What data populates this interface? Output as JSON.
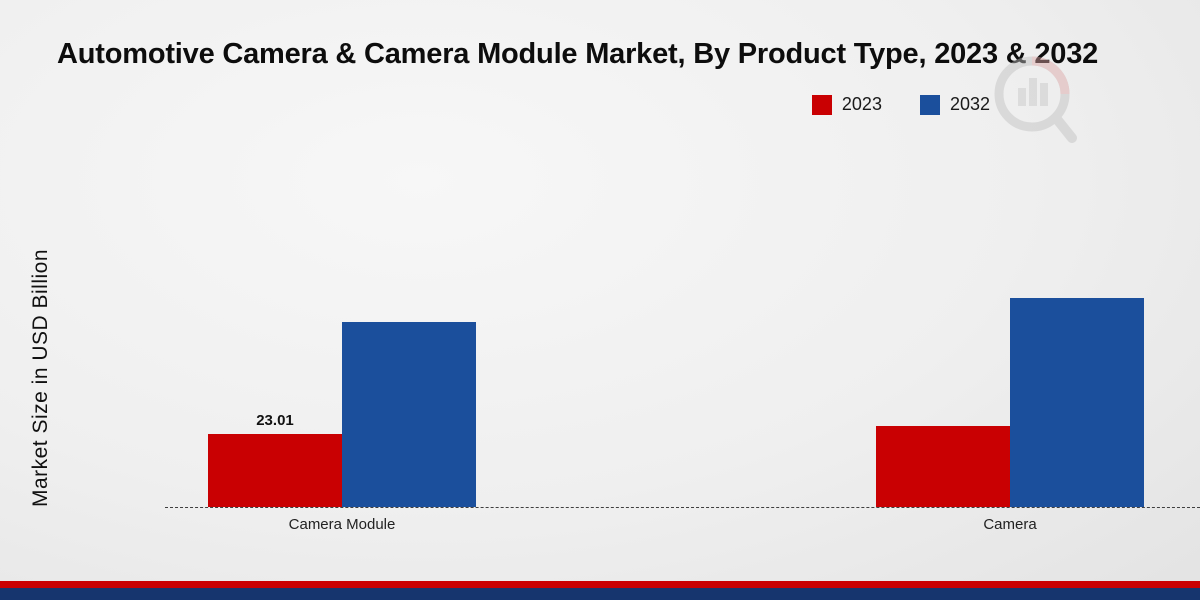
{
  "title": "Automotive Camera & Camera Module Market, By Product Type, 2023 & 2032",
  "y_axis_label": "Market Size in USD Billion",
  "legend": [
    {
      "label": "2023",
      "color": "#c90002"
    },
    {
      "label": "2032",
      "color": "#1b4f9c"
    }
  ],
  "annotation": {
    "text": "23.01",
    "category": "Camera Module",
    "series": "2023"
  },
  "footer": {
    "red_strip_color": "#c90002",
    "blue_strip_color": "#16356e"
  },
  "watermark": {
    "name": "market-research-logo"
  },
  "chart_data": {
    "type": "bar",
    "categories": [
      "Camera Module",
      "Camera"
    ],
    "series": [
      {
        "name": "2023",
        "color": "#c90002",
        "values": [
          23.01,
          25.5
        ]
      },
      {
        "name": "2032",
        "color": "#1b4f9c",
        "values": [
          58.5,
          66.0
        ]
      }
    ],
    "title": "Automotive Camera & Camera Module Market, By Product Type, 2023 & 2032",
    "xlabel": "",
    "ylabel": "Market Size in USD Billion",
    "ylim": [
      0,
      80
    ],
    "grid": false,
    "legend_position": "top-right",
    "baseline_style": "dashed",
    "value_labels": [
      {
        "series": "2023",
        "category": "Camera Module",
        "text": "23.01"
      }
    ]
  }
}
